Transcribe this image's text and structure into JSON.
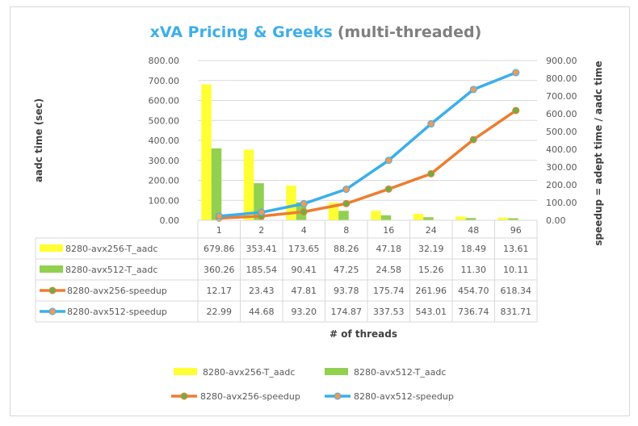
{
  "chart_data": {
    "type": "bar+line",
    "title": "xVA Pricing  & Greeks",
    "subtitle": "(multi-threaded)",
    "xlabel": "# of threads",
    "ylabel": "aadc time (sec)",
    "y2label": "speedup = adept time / aadc time",
    "categories": [
      "1",
      "2",
      "4",
      "8",
      "16",
      "24",
      "48",
      "96"
    ],
    "ylim": [
      0,
      800
    ],
    "y2lim": [
      0,
      900
    ],
    "yticks": [
      "0.00",
      "100.00",
      "200.00",
      "300.00",
      "400.00",
      "500.00",
      "600.00",
      "700.00",
      "800.00"
    ],
    "y2ticks": [
      "0.00",
      "100.00",
      "200.00",
      "300.00",
      "400.00",
      "500.00",
      "600.00",
      "700.00",
      "800.00",
      "900.00"
    ],
    "grid": true,
    "legend": "bottom",
    "series": [
      {
        "name": "8280-avx256-T_aadc",
        "type": "bar",
        "axis": "left",
        "color": "#FFFF33",
        "values": [
          679.86,
          353.41,
          173.65,
          88.26,
          47.18,
          32.19,
          18.49,
          13.61
        ],
        "labels": [
          "679.86",
          "353.41",
          "173.65",
          "88.26",
          "47.18",
          "32.19",
          "18.49",
          "13.61"
        ]
      },
      {
        "name": "8280-avx512-T_aadc",
        "type": "bar",
        "axis": "left",
        "color": "#92D050",
        "values": [
          360.26,
          185.54,
          90.41,
          47.25,
          24.58,
          15.26,
          11.3,
          10.11
        ],
        "labels": [
          "360.26",
          "185.54",
          "90.41",
          "47.25",
          "24.58",
          "15.26",
          "11.30",
          "10.11"
        ]
      },
      {
        "name": "8280-avx256-speedup",
        "type": "line",
        "axis": "right",
        "color": "#ED7D31",
        "marker": "#70AD47",
        "values": [
          12.17,
          23.43,
          47.81,
          93.78,
          175.74,
          261.96,
          454.7,
          618.34
        ],
        "labels": [
          "12.17",
          "23.43",
          "47.81",
          "93.78",
          "175.74",
          "261.96",
          "454.70",
          "618.34"
        ]
      },
      {
        "name": "8280-avx512-speedup",
        "type": "line",
        "axis": "right",
        "color": "#3DAEEB",
        "marker": "#ED9A5A",
        "values": [
          22.99,
          44.68,
          93.2,
          174.87,
          337.53,
          543.01,
          736.74,
          831.71
        ],
        "labels": [
          "22.99",
          "44.68",
          "93.20",
          "174.87",
          "337.53",
          "543.01",
          "736.74",
          "831.71"
        ]
      }
    ]
  }
}
